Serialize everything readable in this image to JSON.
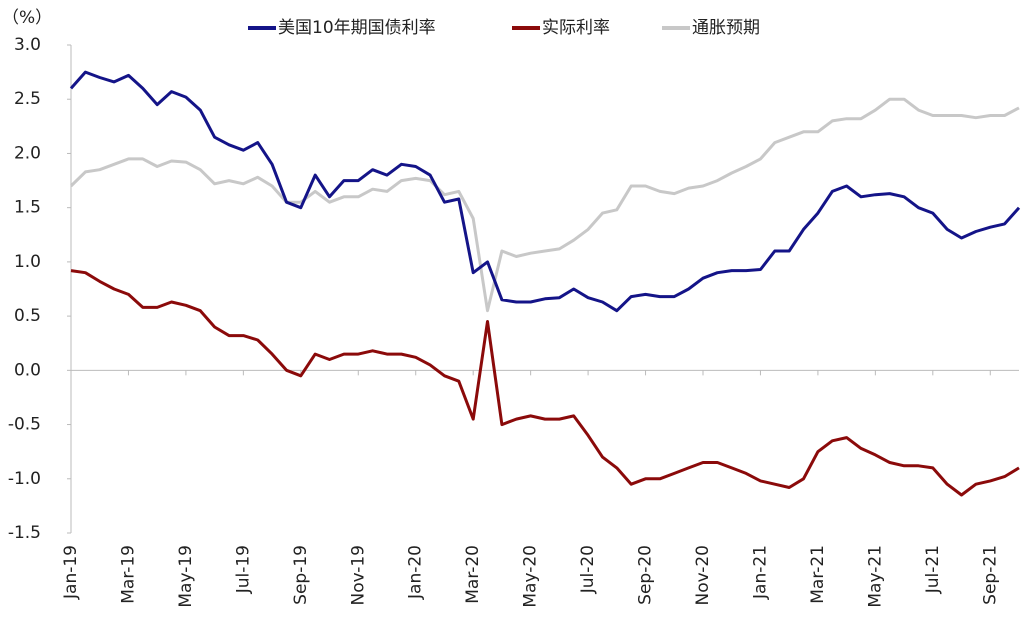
{
  "chart_data": {
    "type": "line",
    "unit_label": "（%）",
    "categories": [
      "Jan-19",
      null,
      null,
      null,
      "Mar-19",
      null,
      null,
      null,
      "May-19",
      null,
      null,
      null,
      "Jul-19",
      null,
      null,
      null,
      "Sep-19",
      null,
      null,
      null,
      "Nov-19",
      null,
      null,
      null,
      "Jan-20",
      null,
      null,
      null,
      "Mar-20",
      null,
      null,
      null,
      "May-20",
      null,
      null,
      null,
      "Jul-20",
      null,
      null,
      null,
      "Sep-20",
      null,
      null,
      null,
      "Nov-20",
      null,
      null,
      null,
      "Jan-21",
      null,
      null,
      null,
      "Mar-21",
      null,
      null,
      null,
      "May-21",
      null,
      null,
      null,
      "Jul-21",
      null,
      null,
      null,
      "Sep-21",
      null,
      null
    ],
    "series": [
      {
        "name": "美国10年期国债利率",
        "color": "#141488",
        "values": [
          2.6,
          2.75,
          2.7,
          2.66,
          2.72,
          2.6,
          2.45,
          2.57,
          2.52,
          2.4,
          2.15,
          2.08,
          2.03,
          2.1,
          1.9,
          1.55,
          1.5,
          1.8,
          1.6,
          1.75,
          1.75,
          1.85,
          1.8,
          1.9,
          1.88,
          1.8,
          1.55,
          1.58,
          0.9,
          1.0,
          0.65,
          0.63,
          0.63,
          0.66,
          0.67,
          0.75,
          0.67,
          0.63,
          0.55,
          0.68,
          0.7,
          0.68,
          0.68,
          0.75,
          0.85,
          0.9,
          0.92,
          0.92,
          0.93,
          1.1,
          1.1,
          1.3,
          1.45,
          1.65,
          1.7,
          1.6,
          1.62,
          1.63,
          1.6,
          1.5,
          1.45,
          1.3,
          1.22,
          1.28,
          1.32,
          1.35,
          1.5
        ]
      },
      {
        "name": "实际利率",
        "color": "#8b0a0a",
        "values": [
          0.92,
          0.9,
          0.82,
          0.75,
          0.7,
          0.58,
          0.58,
          0.63,
          0.6,
          0.55,
          0.4,
          0.32,
          0.32,
          0.28,
          0.15,
          0.0,
          -0.05,
          0.15,
          0.1,
          0.15,
          0.15,
          0.18,
          0.15,
          0.15,
          0.12,
          0.05,
          -0.05,
          -0.1,
          -0.45,
          0.45,
          -0.5,
          -0.45,
          -0.42,
          -0.45,
          -0.45,
          -0.42,
          -0.6,
          -0.8,
          -0.9,
          -1.05,
          -1.0,
          -1.0,
          -0.95,
          -0.9,
          -0.85,
          -0.85,
          -0.9,
          -0.95,
          -1.02,
          -1.05,
          -1.08,
          -1.0,
          -0.75,
          -0.65,
          -0.62,
          -0.72,
          -0.78,
          -0.85,
          -0.88,
          -0.88,
          -0.9,
          -1.05,
          -1.15,
          -1.05,
          -1.02,
          -0.98,
          -0.9
        ]
      },
      {
        "name": "通胀预期",
        "color": "#c8c8c8",
        "values": [
          1.7,
          1.83,
          1.85,
          1.9,
          1.95,
          1.95,
          1.88,
          1.93,
          1.92,
          1.85,
          1.72,
          1.75,
          1.72,
          1.78,
          1.7,
          1.55,
          1.55,
          1.65,
          1.55,
          1.6,
          1.6,
          1.67,
          1.65,
          1.75,
          1.77,
          1.75,
          1.62,
          1.65,
          1.4,
          0.55,
          1.1,
          1.05,
          1.08,
          1.1,
          1.12,
          1.2,
          1.3,
          1.45,
          1.48,
          1.7,
          1.7,
          1.65,
          1.63,
          1.68,
          1.7,
          1.75,
          1.82,
          1.88,
          1.95,
          2.1,
          2.15,
          2.2,
          2.2,
          2.3,
          2.32,
          2.32,
          2.4,
          2.5,
          2.5,
          2.4,
          2.35,
          2.35,
          2.35,
          2.33,
          2.35,
          2.35,
          2.42
        ]
      }
    ],
    "ylim": [
      -1.5,
      3
    ],
    "yticks": [
      {
        "value": 3,
        "label": "3.0"
      },
      2.5,
      {
        "value": 2,
        "label": "2.0"
      },
      1.5,
      {
        "value": 1,
        "label": "1.0"
      },
      0.5,
      {
        "value": 0,
        "label": "0.0"
      },
      -0.5,
      {
        "value": -1,
        "label": "-1.0"
      },
      -1.5
    ],
    "negative_tick_color": "#e00000",
    "grid": false
  }
}
